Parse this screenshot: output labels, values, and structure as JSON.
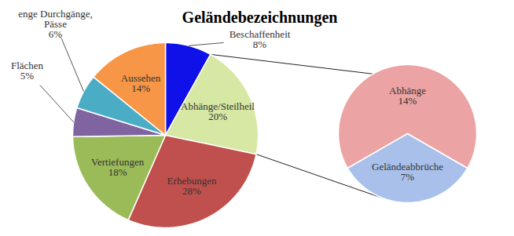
{
  "chart_data": [
    {
      "type": "pie",
      "title": "Geländebezeichnungen",
      "categories": [
        "Beschaffenheit",
        "Abhänge/Steilheil",
        "Erhebungen",
        "Vertiefungen",
        "Flächen",
        "enge Durchgänge, Pässe",
        "Aussehen"
      ],
      "values": [
        8,
        20,
        28,
        18,
        5,
        6,
        14
      ],
      "value_labels": [
        "8%",
        "20%",
        "28%",
        "18%",
        "5%",
        "6%",
        "14%"
      ],
      "colors": [
        "#1010e8",
        "#d6e8a4",
        "#c0504d",
        "#9bbb59",
        "#8064a2",
        "#4bacc6",
        "#f79646"
      ],
      "data_labels": true
    },
    {
      "type": "pie",
      "categories": [
        "Abhänge",
        "Geländeabbrüche"
      ],
      "values": [
        14,
        7
      ],
      "value_labels": [
        "14%",
        "7%"
      ],
      "colors": [
        "#eba3a3",
        "#a9c1ea"
      ],
      "data_labels": true
    }
  ]
}
